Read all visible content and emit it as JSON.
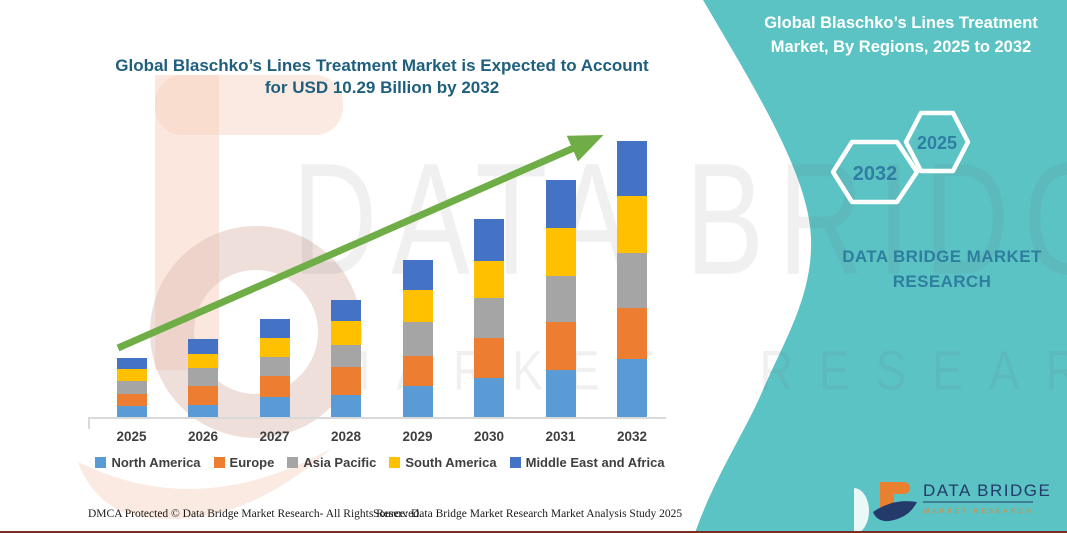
{
  "main_title": {
    "line1": "Global Blaschko’s Lines Treatment Market is Expected to Account",
    "line2": "for USD 10.29 Billion by 2032"
  },
  "side_panel": {
    "title_line1": "Global Blaschko’s Lines Treatment",
    "title_line2": "Market, By Regions, 2025 to 2032",
    "hexagon_back_label": "2025",
    "hexagon_front_label": "2032",
    "brand_line1": "DATA BRIDGE MARKET",
    "brand_line2": "RESEARCH"
  },
  "watermarks": {
    "big_text": "DATA BRIDGE",
    "row_text": "MARKET RESEARCH"
  },
  "chart_data": {
    "type": "bar",
    "stacked": true,
    "title": "Global Blaschko’s Lines Treatment Market is Expected to Account for USD 10.29 Billion by 2032",
    "unit": "USD Billion",
    "values_estimated_from_pixels": true,
    "gridlines": false,
    "legend_position": "bottom",
    "trend_arrow": true,
    "categories": [
      "2025",
      "2026",
      "2027",
      "2028",
      "2029",
      "2030",
      "2031",
      "2032"
    ],
    "series": [
      {
        "name": "North America",
        "color": "#5B9BD5",
        "values": [
          0.41,
          0.46,
          0.77,
          0.83,
          1.17,
          1.45,
          1.76,
          2.16
        ]
      },
      {
        "name": "Europe",
        "color": "#ED7D31",
        "values": [
          0.46,
          0.7,
          0.77,
          1.05,
          1.12,
          1.51,
          1.8,
          1.92
        ]
      },
      {
        "name": "Asia Pacific",
        "color": "#A5A5A5",
        "values": [
          0.5,
          0.67,
          0.7,
          0.81,
          1.28,
          1.47,
          1.7,
          2.05
        ]
      },
      {
        "name": "South America",
        "color": "#FFC000",
        "values": [
          0.44,
          0.53,
          0.71,
          0.9,
          1.18,
          1.4,
          1.8,
          2.11
        ]
      },
      {
        "name": "Middle East and Africa",
        "color": "#4472C4",
        "values": [
          0.4,
          0.57,
          0.72,
          0.8,
          1.12,
          1.56,
          1.78,
          2.05
        ]
      }
    ],
    "totals": [
      2.21,
      2.93,
      3.67,
      4.39,
      5.87,
      7.39,
      8.84,
      10.29
    ],
    "highlight_value": "USD 10.29 Billion by 2032"
  },
  "footer": {
    "dmca": "DMCA Protected © Data Bridge Market Research-  All Rights Reserved.",
    "source": "Source: Data Bridge Market Research  Market Analysis Study 2025"
  },
  "logo": {
    "name": "DATA BRIDGE",
    "subtext": "MARKET RESEARCH"
  },
  "colors": {
    "teal_panel": "#5CC3C5",
    "panel_accent_text": "#2E7E9E",
    "main_title_text": "#1F5F7E",
    "trend_arrow_green": "#6FAE46",
    "axis_gray": "#D9D9D9",
    "label_gray": "#3F3F3F",
    "logo_navy": "#243A6B",
    "logo_orange": "#E8802F",
    "bottom_rule_maroon": "#7B2A24"
  }
}
